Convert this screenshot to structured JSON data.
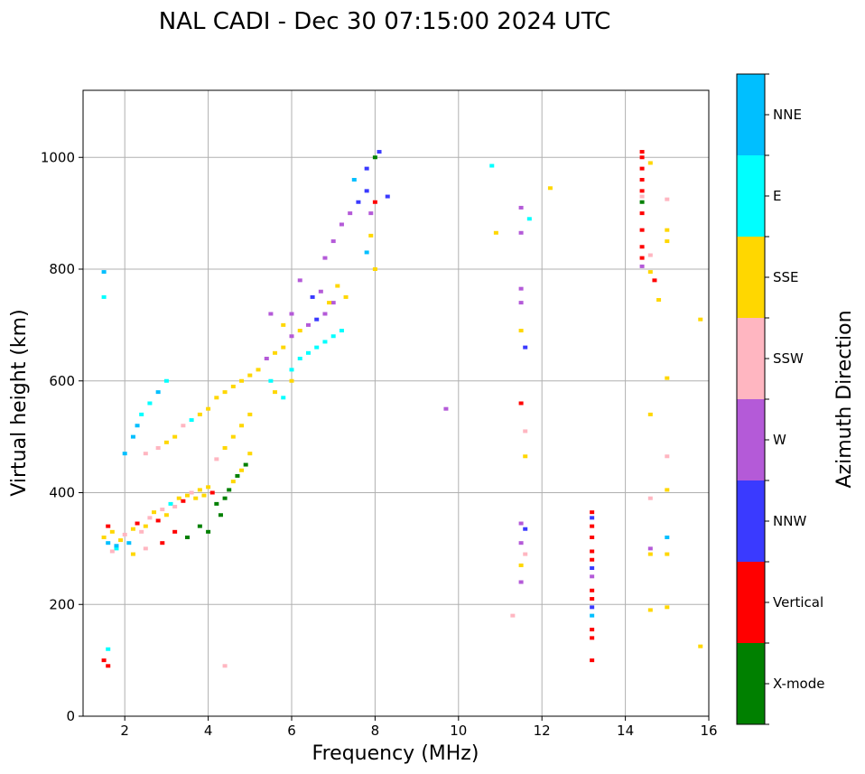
{
  "chart_data": {
    "type": "scatter",
    "title": "NAL CADI - Dec 30 07:15:00 2024 UTC",
    "xlabel": "Frequency (MHz)",
    "ylabel": "Virtual height (km)",
    "xlim": [
      1,
      16
    ],
    "ylim": [
      0,
      1120
    ],
    "x_ticks": [
      2,
      4,
      6,
      8,
      10,
      12,
      14,
      16
    ],
    "y_ticks": [
      0,
      200,
      400,
      600,
      800,
      1000
    ],
    "grid": true,
    "colorbar": {
      "title": "Azimuth Direction",
      "categories": [
        {
          "label": "X-mode",
          "color": "#008000"
        },
        {
          "label": "Vertical",
          "color": "#ff0000"
        },
        {
          "label": "NNW",
          "color": "#3a3aff"
        },
        {
          "label": "W",
          "color": "#b45ad8"
        },
        {
          "label": "SSW",
          "color": "#ffb6c1"
        },
        {
          "label": "SSE",
          "color": "#ffd700"
        },
        {
          "label": "E",
          "color": "#00ffff"
        },
        {
          "label": "NNE",
          "color": "#00bfff"
        }
      ]
    },
    "points": [
      [
        1.5,
        320,
        "SSE"
      ],
      [
        1.6,
        310,
        "NNE"
      ],
      [
        1.7,
        330,
        "SSE"
      ],
      [
        1.8,
        300,
        "E"
      ],
      [
        1.6,
        340,
        "Vertical"
      ],
      [
        1.9,
        315,
        "SSE"
      ],
      [
        2.0,
        325,
        "SSW"
      ],
      [
        2.1,
        310,
        "NNE"
      ],
      [
        1.7,
        295,
        "SSW"
      ],
      [
        2.2,
        335,
        "SSE"
      ],
      [
        2.3,
        345,
        "Vertical"
      ],
      [
        2.4,
        330,
        "SSW"
      ],
      [
        2.5,
        340,
        "SSE"
      ],
      [
        2.6,
        355,
        "SSW"
      ],
      [
        2.7,
        365,
        "SSE"
      ],
      [
        2.8,
        350,
        "Vertical"
      ],
      [
        2.9,
        370,
        "SSW"
      ],
      [
        3.0,
        360,
        "SSE"
      ],
      [
        3.1,
        380,
        "E"
      ],
      [
        3.2,
        375,
        "SSW"
      ],
      [
        3.3,
        390,
        "SSE"
      ],
      [
        3.4,
        385,
        "Vertical"
      ],
      [
        3.5,
        395,
        "SSE"
      ],
      [
        3.6,
        400,
        "SSW"
      ],
      [
        3.7,
        390,
        "SSE"
      ],
      [
        3.8,
        405,
        "SSE"
      ],
      [
        3.9,
        395,
        "SSE"
      ],
      [
        4.0,
        410,
        "SSE"
      ],
      [
        4.1,
        400,
        "Vertical"
      ],
      [
        4.2,
        380,
        "X-mode"
      ],
      [
        4.3,
        360,
        "X-mode"
      ],
      [
        4.4,
        390,
        "X-mode"
      ],
      [
        4.5,
        405,
        "X-mode"
      ],
      [
        4.6,
        420,
        "SSE"
      ],
      [
        4.7,
        430,
        "X-mode"
      ],
      [
        4.8,
        440,
        "SSE"
      ],
      [
        4.9,
        450,
        "X-mode"
      ],
      [
        5.0,
        470,
        "SSE"
      ],
      [
        3.8,
        340,
        "X-mode"
      ],
      [
        4.0,
        330,
        "X-mode"
      ],
      [
        3.5,
        320,
        "X-mode"
      ],
      [
        3.2,
        330,
        "Vertical"
      ],
      [
        2.9,
        310,
        "Vertical"
      ],
      [
        2.5,
        300,
        "SSW"
      ],
      [
        2.2,
        290,
        "SSE"
      ],
      [
        1.8,
        305,
        "NNE"
      ],
      [
        2.0,
        470,
        "NNE"
      ],
      [
        2.2,
        500,
        "NNE"
      ],
      [
        2.3,
        520,
        "NNE"
      ],
      [
        2.4,
        540,
        "E"
      ],
      [
        2.6,
        560,
        "E"
      ],
      [
        2.8,
        580,
        "NNE"
      ],
      [
        3.0,
        600,
        "E"
      ],
      [
        2.5,
        470,
        "SSW"
      ],
      [
        2.8,
        480,
        "SSW"
      ],
      [
        3.0,
        490,
        "SSE"
      ],
      [
        3.2,
        500,
        "SSE"
      ],
      [
        3.4,
        520,
        "SSW"
      ],
      [
        3.6,
        530,
        "E"
      ],
      [
        3.8,
        540,
        "SSE"
      ],
      [
        4.0,
        550,
        "SSE"
      ],
      [
        4.2,
        570,
        "SSE"
      ],
      [
        4.4,
        580,
        "SSE"
      ],
      [
        4.6,
        590,
        "SSE"
      ],
      [
        4.8,
        600,
        "SSE"
      ],
      [
        5.0,
        610,
        "SSE"
      ],
      [
        5.2,
        620,
        "SSE"
      ],
      [
        5.4,
        640,
        "W"
      ],
      [
        5.6,
        650,
        "SSE"
      ],
      [
        5.8,
        660,
        "SSE"
      ],
      [
        6.0,
        680,
        "W"
      ],
      [
        6.2,
        690,
        "SSE"
      ],
      [
        6.4,
        700,
        "W"
      ],
      [
        6.6,
        710,
        "NNW"
      ],
      [
        6.8,
        720,
        "W"
      ],
      [
        7.0,
        740,
        "W"
      ],
      [
        6.0,
        620,
        "E"
      ],
      [
        6.2,
        640,
        "E"
      ],
      [
        6.4,
        650,
        "E"
      ],
      [
        6.6,
        660,
        "E"
      ],
      [
        6.8,
        670,
        "E"
      ],
      [
        7.0,
        680,
        "E"
      ],
      [
        7.2,
        690,
        "E"
      ],
      [
        5.5,
        600,
        "E"
      ],
      [
        5.6,
        580,
        "SSE"
      ],
      [
        5.8,
        570,
        "E"
      ],
      [
        6.0,
        600,
        "SSE"
      ],
      [
        5.0,
        540,
        "SSE"
      ],
      [
        4.8,
        520,
        "SSE"
      ],
      [
        4.6,
        500,
        "SSE"
      ],
      [
        4.4,
        480,
        "SSE"
      ],
      [
        4.2,
        460,
        "SSW"
      ],
      [
        6.5,
        750,
        "NNW"
      ],
      [
        6.7,
        760,
        "W"
      ],
      [
        6.9,
        740,
        "SSE"
      ],
      [
        7.1,
        770,
        "SSE"
      ],
      [
        7.3,
        750,
        "SSE"
      ],
      [
        6.2,
        780,
        "W"
      ],
      [
        6.8,
        820,
        "W"
      ],
      [
        7.0,
        850,
        "W"
      ],
      [
        7.2,
        880,
        "W"
      ],
      [
        7.4,
        900,
        "W"
      ],
      [
        7.6,
        920,
        "NNW"
      ],
      [
        7.8,
        940,
        "NNW"
      ],
      [
        7.5,
        960,
        "NNE"
      ],
      [
        7.8,
        980,
        "NNW"
      ],
      [
        8.0,
        1000,
        "X-mode"
      ],
      [
        8.1,
        1010,
        "NNW"
      ],
      [
        7.9,
        860,
        "SSE"
      ],
      [
        7.8,
        830,
        "NNE"
      ],
      [
        7.9,
        900,
        "W"
      ],
      [
        8.3,
        930,
        "NNW"
      ],
      [
        8.0,
        920,
        "Vertical"
      ],
      [
        8.0,
        800,
        "SSE"
      ],
      [
        5.5,
        720,
        "W"
      ],
      [
        5.8,
        700,
        "SSE"
      ],
      [
        6.0,
        720,
        "W"
      ],
      [
        1.5,
        795,
        "NNE"
      ],
      [
        1.5,
        750,
        "E"
      ],
      [
        1.5,
        100,
        "Vertical"
      ],
      [
        1.6,
        90,
        "Vertical"
      ],
      [
        1.6,
        120,
        "E"
      ],
      [
        4.4,
        90,
        "SSW"
      ],
      [
        9.7,
        550,
        "W"
      ],
      [
        10.8,
        985,
        "E"
      ],
      [
        10.9,
        865,
        "SSE"
      ],
      [
        11.3,
        180,
        "SSW"
      ],
      [
        11.5,
        910,
        "W"
      ],
      [
        11.5,
        865,
        "W"
      ],
      [
        11.5,
        765,
        "W"
      ],
      [
        11.5,
        740,
        "W"
      ],
      [
        11.5,
        690,
        "SSE"
      ],
      [
        11.6,
        660,
        "NNW"
      ],
      [
        11.5,
        560,
        "Vertical"
      ],
      [
        11.6,
        510,
        "SSW"
      ],
      [
        11.6,
        465,
        "SSE"
      ],
      [
        11.5,
        345,
        "W"
      ],
      [
        11.6,
        335,
        "NNW"
      ],
      [
        11.5,
        310,
        "W"
      ],
      [
        11.6,
        290,
        "SSW"
      ],
      [
        11.5,
        270,
        "SSE"
      ],
      [
        11.5,
        240,
        "W"
      ],
      [
        11.7,
        890,
        "E"
      ],
      [
        12.2,
        945,
        "SSE"
      ],
      [
        13.2,
        100,
        "Vertical"
      ],
      [
        13.2,
        140,
        "Vertical"
      ],
      [
        13.2,
        155,
        "Vertical"
      ],
      [
        13.2,
        180,
        "NNE"
      ],
      [
        13.2,
        195,
        "NNW"
      ],
      [
        13.2,
        210,
        "Vertical"
      ],
      [
        13.2,
        225,
        "Vertical"
      ],
      [
        13.2,
        250,
        "W"
      ],
      [
        13.2,
        265,
        "NNW"
      ],
      [
        13.2,
        280,
        "Vertical"
      ],
      [
        13.2,
        295,
        "Vertical"
      ],
      [
        13.2,
        320,
        "Vertical"
      ],
      [
        13.2,
        340,
        "Vertical"
      ],
      [
        13.2,
        355,
        "NNW"
      ],
      [
        13.2,
        365,
        "Vertical"
      ],
      [
        14.4,
        820,
        "Vertical"
      ],
      [
        14.4,
        840,
        "Vertical"
      ],
      [
        14.4,
        870,
        "Vertical"
      ],
      [
        14.4,
        900,
        "Vertical"
      ],
      [
        14.4,
        920,
        "X-mode"
      ],
      [
        14.4,
        940,
        "Vertical"
      ],
      [
        14.4,
        960,
        "Vertical"
      ],
      [
        14.4,
        980,
        "Vertical"
      ],
      [
        14.4,
        1000,
        "Vertical"
      ],
      [
        14.4,
        1010,
        "Vertical"
      ],
      [
        14.4,
        805,
        "W"
      ],
      [
        14.4,
        930,
        "SSW"
      ],
      [
        14.6,
        990,
        "SSE"
      ],
      [
        14.6,
        825,
        "SSW"
      ],
      [
        14.6,
        795,
        "SSE"
      ],
      [
        14.7,
        780,
        "Vertical"
      ],
      [
        14.8,
        745,
        "SSE"
      ],
      [
        14.6,
        540,
        "SSE"
      ],
      [
        14.6,
        390,
        "SSW"
      ],
      [
        14.6,
        300,
        "W"
      ],
      [
        14.6,
        290,
        "SSE"
      ],
      [
        14.6,
        190,
        "SSE"
      ],
      [
        15.0,
        925,
        "SSW"
      ],
      [
        15.0,
        870,
        "SSE"
      ],
      [
        15.0,
        850,
        "SSE"
      ],
      [
        15.0,
        605,
        "SSE"
      ],
      [
        15.0,
        465,
        "SSW"
      ],
      [
        15.0,
        405,
        "SSE"
      ],
      [
        15.0,
        320,
        "NNE"
      ],
      [
        15.0,
        290,
        "SSE"
      ],
      [
        15.0,
        195,
        "SSE"
      ],
      [
        15.8,
        710,
        "SSE"
      ],
      [
        15.8,
        125,
        "SSE"
      ]
    ]
  }
}
